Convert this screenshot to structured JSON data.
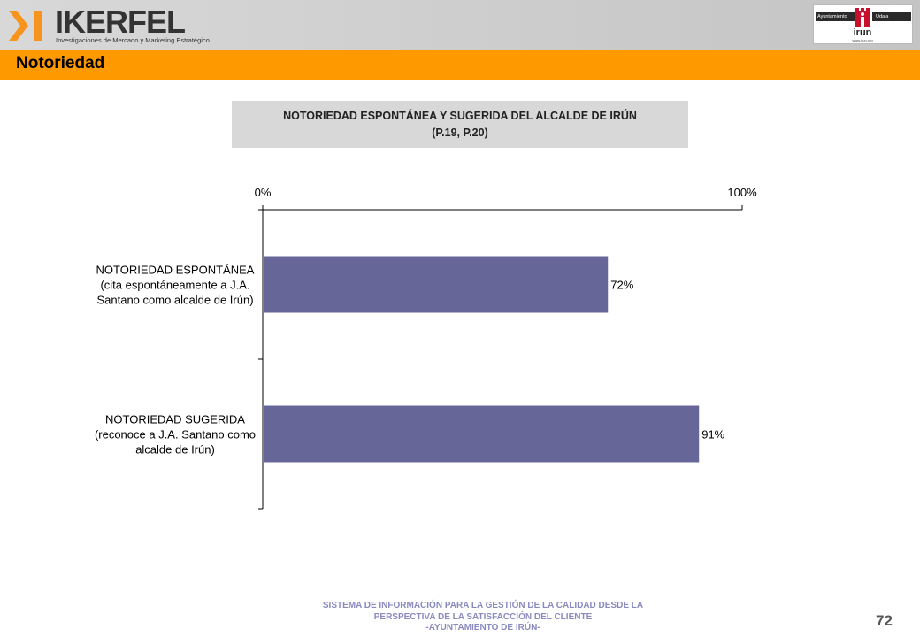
{
  "header": {
    "brand_name": "IKERFEL",
    "brand_tagline": "Investigaciones de Mercado y Marketing Estratégico",
    "partner_logo": {
      "left_label": "Ayuntamiento",
      "right_label": "Udala",
      "name": "irun",
      "url": "www.irun.org"
    }
  },
  "section": {
    "title": "Notoriedad"
  },
  "chart_title": {
    "line1": "NOTORIEDAD ESPONTÁNEA Y SUGERIDA DEL ALCALDE DE IRÚN",
    "line2": "(P.19, P.20)"
  },
  "chart_data": {
    "type": "bar",
    "orientation": "horizontal",
    "categories": [
      [
        "NOTORIEDAD ESPONTÁNEA",
        "(cita espontáneamente a J.A.",
        "Santano como alcalde de Irún)"
      ],
      [
        "NOTORIEDAD SUGERIDA",
        "(reconoce a J.A. Santano como",
        "alcalde de Irún)"
      ]
    ],
    "values": [
      72,
      91
    ],
    "value_labels": [
      "72%",
      "91%"
    ],
    "xlim": [
      0,
      100
    ],
    "tick_labels": [
      "0%",
      "100%"
    ],
    "bar_color": "#666699",
    "grid": false,
    "legend": "none"
  },
  "footer": {
    "lines": [
      "SISTEMA DE INFORMACIÓN PARA LA GESTIÓN DE LA CALIDAD DESDE LA",
      "PERSPECTIVA DE LA SATISFACCIÓN DEL CLIENTE",
      "-AYUNTAMIENTO DE IRÚN-"
    ],
    "page_number": "72"
  },
  "colors": {
    "accent": "#ff9900",
    "brand_orange": "#f7941d",
    "footer_text": "#8a8ac0"
  }
}
